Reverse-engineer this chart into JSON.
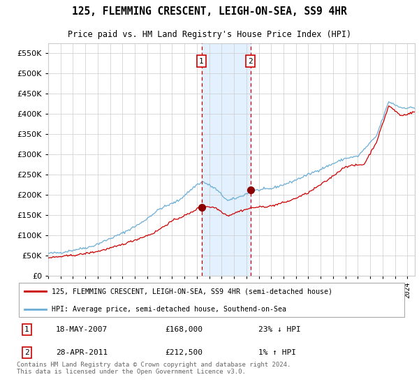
{
  "title": "125, FLEMMING CRESCENT, LEIGH-ON-SEA, SS9 4HR",
  "subtitle": "Price paid vs. HM Land Registry's House Price Index (HPI)",
  "legend_line1": "125, FLEMMING CRESCENT, LEIGH-ON-SEA, SS9 4HR (semi-detached house)",
  "legend_line2": "HPI: Average price, semi-detached house, Southend-on-Sea",
  "footnote": "Contains HM Land Registry data © Crown copyright and database right 2024.\nThis data is licensed under the Open Government Licence v3.0.",
  "purchase1": {
    "date_num": 2007.38,
    "price": 168000,
    "label": "18-MAY-2007",
    "pct": "23% ↓ HPI"
  },
  "purchase2": {
    "date_num": 2011.33,
    "price": 212500,
    "label": "28-APR-2011",
    "pct": "1% ↑ HPI"
  },
  "shade_start": 2007.38,
  "shade_end": 2011.33,
  "hpi_color": "#6baed6",
  "price_color": "#cc0000",
  "dot_color": "#8b0000",
  "background_color": "#ffffff",
  "grid_color": "#cccccc",
  "shade_color": "#ddeeff",
  "ylim": [
    0,
    575000
  ],
  "xlim_start": 1995.0,
  "xlim_end": 2024.6,
  "hpi_knots_t": [
    1995.0,
    1996.0,
    1997.0,
    1998.5,
    1999.5,
    2001.0,
    2002.5,
    2004.0,
    2005.5,
    2007.0,
    2007.5,
    2008.5,
    2009.5,
    2010.5,
    2011.5,
    2013.0,
    2014.5,
    2016.0,
    2017.5,
    2019.0,
    2020.0,
    2021.5,
    2022.5,
    2023.5,
    2024.6
  ],
  "hpi_knots_v": [
    55000,
    57000,
    63000,
    72000,
    85000,
    105000,
    130000,
    165000,
    185000,
    225000,
    232000,
    215000,
    185000,
    195000,
    210000,
    215000,
    230000,
    250000,
    270000,
    290000,
    295000,
    345000,
    430000,
    415000,
    415000
  ],
  "price_knots_t": [
    1995.0,
    1996.0,
    1997.5,
    1999.0,
    2000.5,
    2002.0,
    2003.5,
    2005.0,
    2006.5,
    2007.0,
    2007.5,
    2008.5,
    2009.5,
    2010.5,
    2011.5,
    2013.0,
    2014.5,
    2016.0,
    2017.5,
    2019.0,
    2020.5,
    2021.5,
    2022.5,
    2023.5,
    2024.6
  ],
  "price_knots_v": [
    44000,
    47000,
    52000,
    60000,
    72000,
    88000,
    105000,
    135000,
    155000,
    165000,
    172000,
    168000,
    148000,
    160000,
    168000,
    172000,
    185000,
    205000,
    235000,
    270000,
    275000,
    330000,
    420000,
    395000,
    405000
  ]
}
